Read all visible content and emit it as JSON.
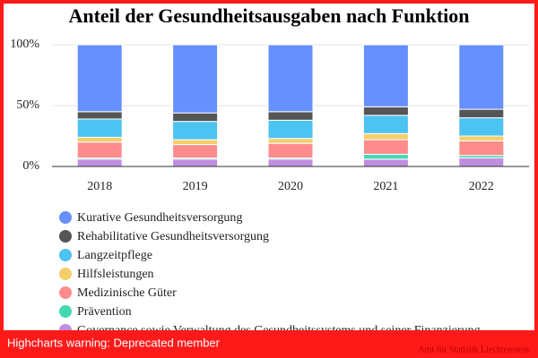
{
  "chart_data": {
    "type": "stacked_bar_percent",
    "title": "Anteil der Gesundheitsausgaben nach Funktion",
    "categories": [
      "2018",
      "2019",
      "2020",
      "2021",
      "2022"
    ],
    "series": [
      {
        "name": "Kurative Gesundheitsversorgung",
        "color": "#6690ff",
        "values": [
          55,
          56,
          55,
          51,
          53
        ]
      },
      {
        "name": "Rehabilitative Gesundheitsversorgung",
        "color": "#555555",
        "values": [
          6,
          7,
          7,
          7,
          7
        ]
      },
      {
        "name": "Langzeitpflege",
        "color": "#4cc3f0",
        "values": [
          15,
          15,
          15,
          15,
          15
        ]
      },
      {
        "name": "Hilfsleistungen",
        "color": "#f5cf6b",
        "values": [
          4,
          4,
          4,
          5,
          4
        ]
      },
      {
        "name": "Medizinische Güter",
        "color": "#ff8c8c",
        "values": [
          13,
          11,
          12,
          12,
          12
        ]
      },
      {
        "name": "Prävention",
        "color": "#44d9b0",
        "values": [
          1,
          1,
          1,
          4,
          2
        ]
      },
      {
        "name": "Governance sowie Verwaltung des Gesundheitssystems und seiner Finanzierung",
        "color": "#c08ee0",
        "values": [
          6,
          6,
          6,
          6,
          7
        ]
      }
    ],
    "ylim": [
      0,
      100
    ],
    "yticks": [
      {
        "value": 0,
        "label": "0%"
      },
      {
        "value": 50,
        "label": "50%"
      },
      {
        "value": 100,
        "label": "100%"
      }
    ],
    "grid": true,
    "credits": "Amt für Statistik Liechtenstein"
  },
  "warning": "Highcharts warning: Deprecated member"
}
